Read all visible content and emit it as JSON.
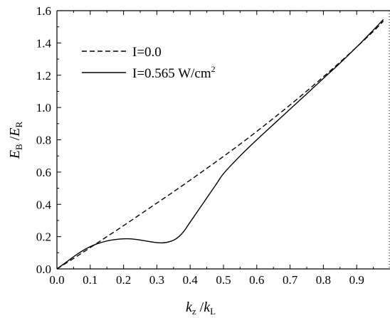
{
  "chart_data": {
    "type": "line",
    "xlim": [
      0.0,
      1.0
    ],
    "ylim": [
      0.0,
      1.6
    ],
    "x_ticks": [
      "0.0",
      "0.1",
      "0.2",
      "0.3",
      "0.4",
      "0.5",
      "0.6",
      "0.7",
      "0.8",
      "0.9"
    ],
    "y_ticks": [
      "0.0",
      "0.2",
      "0.4",
      "0.6",
      "0.8",
      "1.0",
      "1.2",
      "1.4",
      "1.6"
    ],
    "xlabel": {
      "main": "k",
      "sub1": "z",
      "sep": " /",
      "main2": "k",
      "sub2": "L"
    },
    "ylabel": {
      "main": "E",
      "sub1": "B",
      "sep": " /",
      "main2": "E",
      "sub2": "R"
    },
    "legend_position": "top-left",
    "grid": false,
    "series": [
      {
        "name": "I=0.0",
        "style": "dashed",
        "color": "#000000",
        "x": [
          0.0,
          0.05,
          0.1,
          0.15,
          0.2,
          0.25,
          0.3,
          0.35,
          0.4,
          0.45,
          0.5,
          0.55,
          0.6,
          0.65,
          0.7,
          0.75,
          0.8,
          0.85,
          0.9,
          0.95,
          0.98
        ],
        "y": [
          0.0,
          0.065,
          0.132,
          0.2,
          0.268,
          0.338,
          0.408,
          0.478,
          0.55,
          0.623,
          0.697,
          0.773,
          0.852,
          0.933,
          1.016,
          1.102,
          1.19,
          1.281,
          1.375,
          1.472,
          1.535
        ]
      },
      {
        "name_parts": {
          "text": "I=0.565 W/cm",
          "sup": "2"
        },
        "name": "I=0.565 W/cm2",
        "style": "solid",
        "color": "#000000",
        "x": [
          0.0,
          0.03,
          0.06,
          0.09,
          0.12,
          0.15,
          0.18,
          0.21,
          0.24,
          0.27,
          0.3,
          0.32,
          0.34,
          0.36,
          0.38,
          0.4,
          0.42,
          0.45,
          0.48,
          0.5,
          0.55,
          0.6,
          0.65,
          0.7,
          0.75,
          0.8,
          0.85,
          0.9,
          0.95,
          0.98
        ],
        "y": [
          0.0,
          0.045,
          0.09,
          0.128,
          0.155,
          0.173,
          0.183,
          0.187,
          0.182,
          0.172,
          0.163,
          0.162,
          0.17,
          0.19,
          0.23,
          0.29,
          0.35,
          0.44,
          0.53,
          0.59,
          0.7,
          0.8,
          0.895,
          0.99,
          1.085,
          1.18,
          1.275,
          1.375,
          1.48,
          1.545
        ]
      }
    ]
  }
}
